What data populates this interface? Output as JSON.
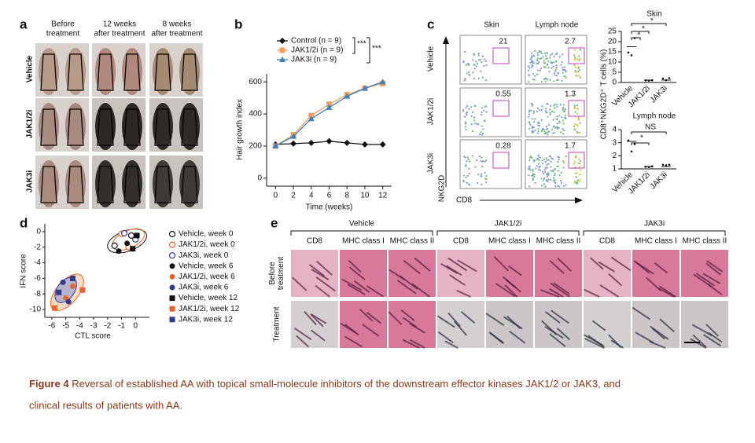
{
  "panels": {
    "a": {
      "label": "a",
      "columns": [
        [
          "Before",
          "treatment"
        ],
        [
          "12 weeks",
          "after treatment"
        ],
        [
          "8 weeks",
          "after treatment"
        ]
      ],
      "rows": [
        "Vehicle",
        "JAK1/2i",
        "JAK3i"
      ]
    },
    "b": {
      "label": "b"
    },
    "c": {
      "label": "c",
      "columns": [
        "Skin",
        "Lymph node"
      ],
      "rows": [
        "Vehicle",
        "JAK1/2i",
        "JAK3i"
      ],
      "gates": [
        [
          "21",
          "2.7"
        ],
        [
          "0.55",
          "1.3"
        ],
        [
          "0.28",
          "1.7"
        ]
      ],
      "y_axis_label": "NKG2D",
      "x_axis_label": "CD8",
      "side_y_label": "CD8⁺NKG2D⁺ T cells (%)",
      "skin": {
        "title": "Skin",
        "yticks": [
          "0",
          "5",
          "10",
          "15",
          "20",
          "25"
        ],
        "categories": [
          "Vehicle",
          "JAK1/2i",
          "JAK3i"
        ],
        "marks": [
          "*",
          "*",
          "*"
        ]
      },
      "lymph": {
        "title": "Lymph node",
        "yticks": [
          "1",
          "2",
          "3",
          "4"
        ],
        "categories": [
          "Vehicle",
          "JAK1/2i",
          "JAK3i"
        ],
        "marks": [
          "NS",
          "*"
        ]
      }
    },
    "d": {
      "label": "d"
    },
    "e": {
      "label": "e",
      "groups": [
        "Vehicle",
        "JAK1/2i",
        "JAK3i"
      ],
      "columns": [
        "CD8",
        "MHC class I",
        "MHC class II"
      ],
      "rows": [
        [
          "Before",
          "treatment"
        ],
        [
          "Treatment"
        ]
      ]
    }
  },
  "chart_data": [
    {
      "type": "line",
      "x_label": "Time (weeks)",
      "y_label": "Hair growth index",
      "annotations": [
        "***",
        "***"
      ],
      "x": [
        0,
        2,
        4,
        6,
        8,
        10,
        12
      ],
      "xlim": [
        -1,
        13
      ],
      "xticks": [
        0,
        2,
        4,
        6,
        8,
        10,
        12
      ],
      "ylim": [
        -50,
        650
      ],
      "yticks": [
        0,
        200,
        400,
        600
      ],
      "series": [
        {
          "name": "Control (n = 9)",
          "color": "#111111",
          "marker": "diamond",
          "values": [
            210,
            215,
            220,
            230,
            220,
            210,
            210
          ]
        },
        {
          "name": "JAK1/2i (n = 9)",
          "color": "#f0a060",
          "marker": "square",
          "values": [
            200,
            270,
            390,
            460,
            520,
            560,
            590
          ]
        },
        {
          "name": "JAK3i (n = 9)",
          "color": "#3a7fc0",
          "marker": "triangle",
          "values": [
            200,
            260,
            370,
            440,
            510,
            560,
            600
          ]
        }
      ]
    },
    {
      "type": "scatter",
      "x_label": "CTL score",
      "y_label": "IFN score",
      "xlim": [
        -6.5,
        1
      ],
      "xticks": [
        -6,
        -5,
        -4,
        -3,
        -2,
        -1,
        0
      ],
      "ylim": [
        -11,
        1
      ],
      "yticks": [
        0,
        -2,
        -4,
        -6,
        -8,
        -10
      ],
      "series": [
        {
          "name": "Vehicle, week 0",
          "color": "#111111",
          "marker": "open-circle",
          "x": [
            -0.3,
            -1.5
          ],
          "values": [
            -0.5,
            -1.8
          ]
        },
        {
          "name": "JAK1/2i, week 0",
          "color": "#e8662b",
          "marker": "open-circle",
          "x": [
            -1,
            -0.5
          ],
          "values": [
            -0.3,
            -2
          ]
        },
        {
          "name": "JAK3i, week 0",
          "color": "#2f3a8f",
          "marker": "open-circle",
          "x": [
            0,
            -0.8
          ],
          "values": [
            -1,
            -0.2
          ]
        },
        {
          "name": "Vehicle, week 6",
          "color": "#111111",
          "marker": "circle",
          "x": [
            -1.2,
            -0.6
          ],
          "values": [
            -2.5,
            -1.5
          ]
        },
        {
          "name": "JAK1/2i, week 6",
          "color": "#e8662b",
          "marker": "circle",
          "x": [
            -4.5,
            -5
          ],
          "values": [
            -7,
            -8.5
          ]
        },
        {
          "name": "JAK3i, week 6",
          "color": "#2f3a8f",
          "marker": "circle",
          "x": [
            -5.2,
            -4.8
          ],
          "values": [
            -6.5,
            -9
          ]
        },
        {
          "name": "Vehicle, week 12",
          "color": "#111111",
          "marker": "square",
          "x": [
            0.1,
            -0.2
          ],
          "values": [
            -0.5,
            -2.2
          ]
        },
        {
          "name": "JAK1/2i, week 12",
          "color": "#e8662b",
          "marker": "square",
          "x": [
            -5.8,
            -3.8
          ],
          "values": [
            -9.8,
            -7.5
          ]
        },
        {
          "name": "JAK3i, week 12",
          "color": "#2f3a8f",
          "marker": "square",
          "x": [
            -4.5,
            -5.5
          ],
          "values": [
            -6,
            -7.8
          ]
        }
      ]
    }
  ],
  "caption": {
    "label": "Figure 4",
    "lines": [
      " Reversal of established AA with topical small-molecule inhibitors of the downstream effector kinases JAK1/2 or JAK3, and",
      "clinical results of patients with AA."
    ]
  }
}
